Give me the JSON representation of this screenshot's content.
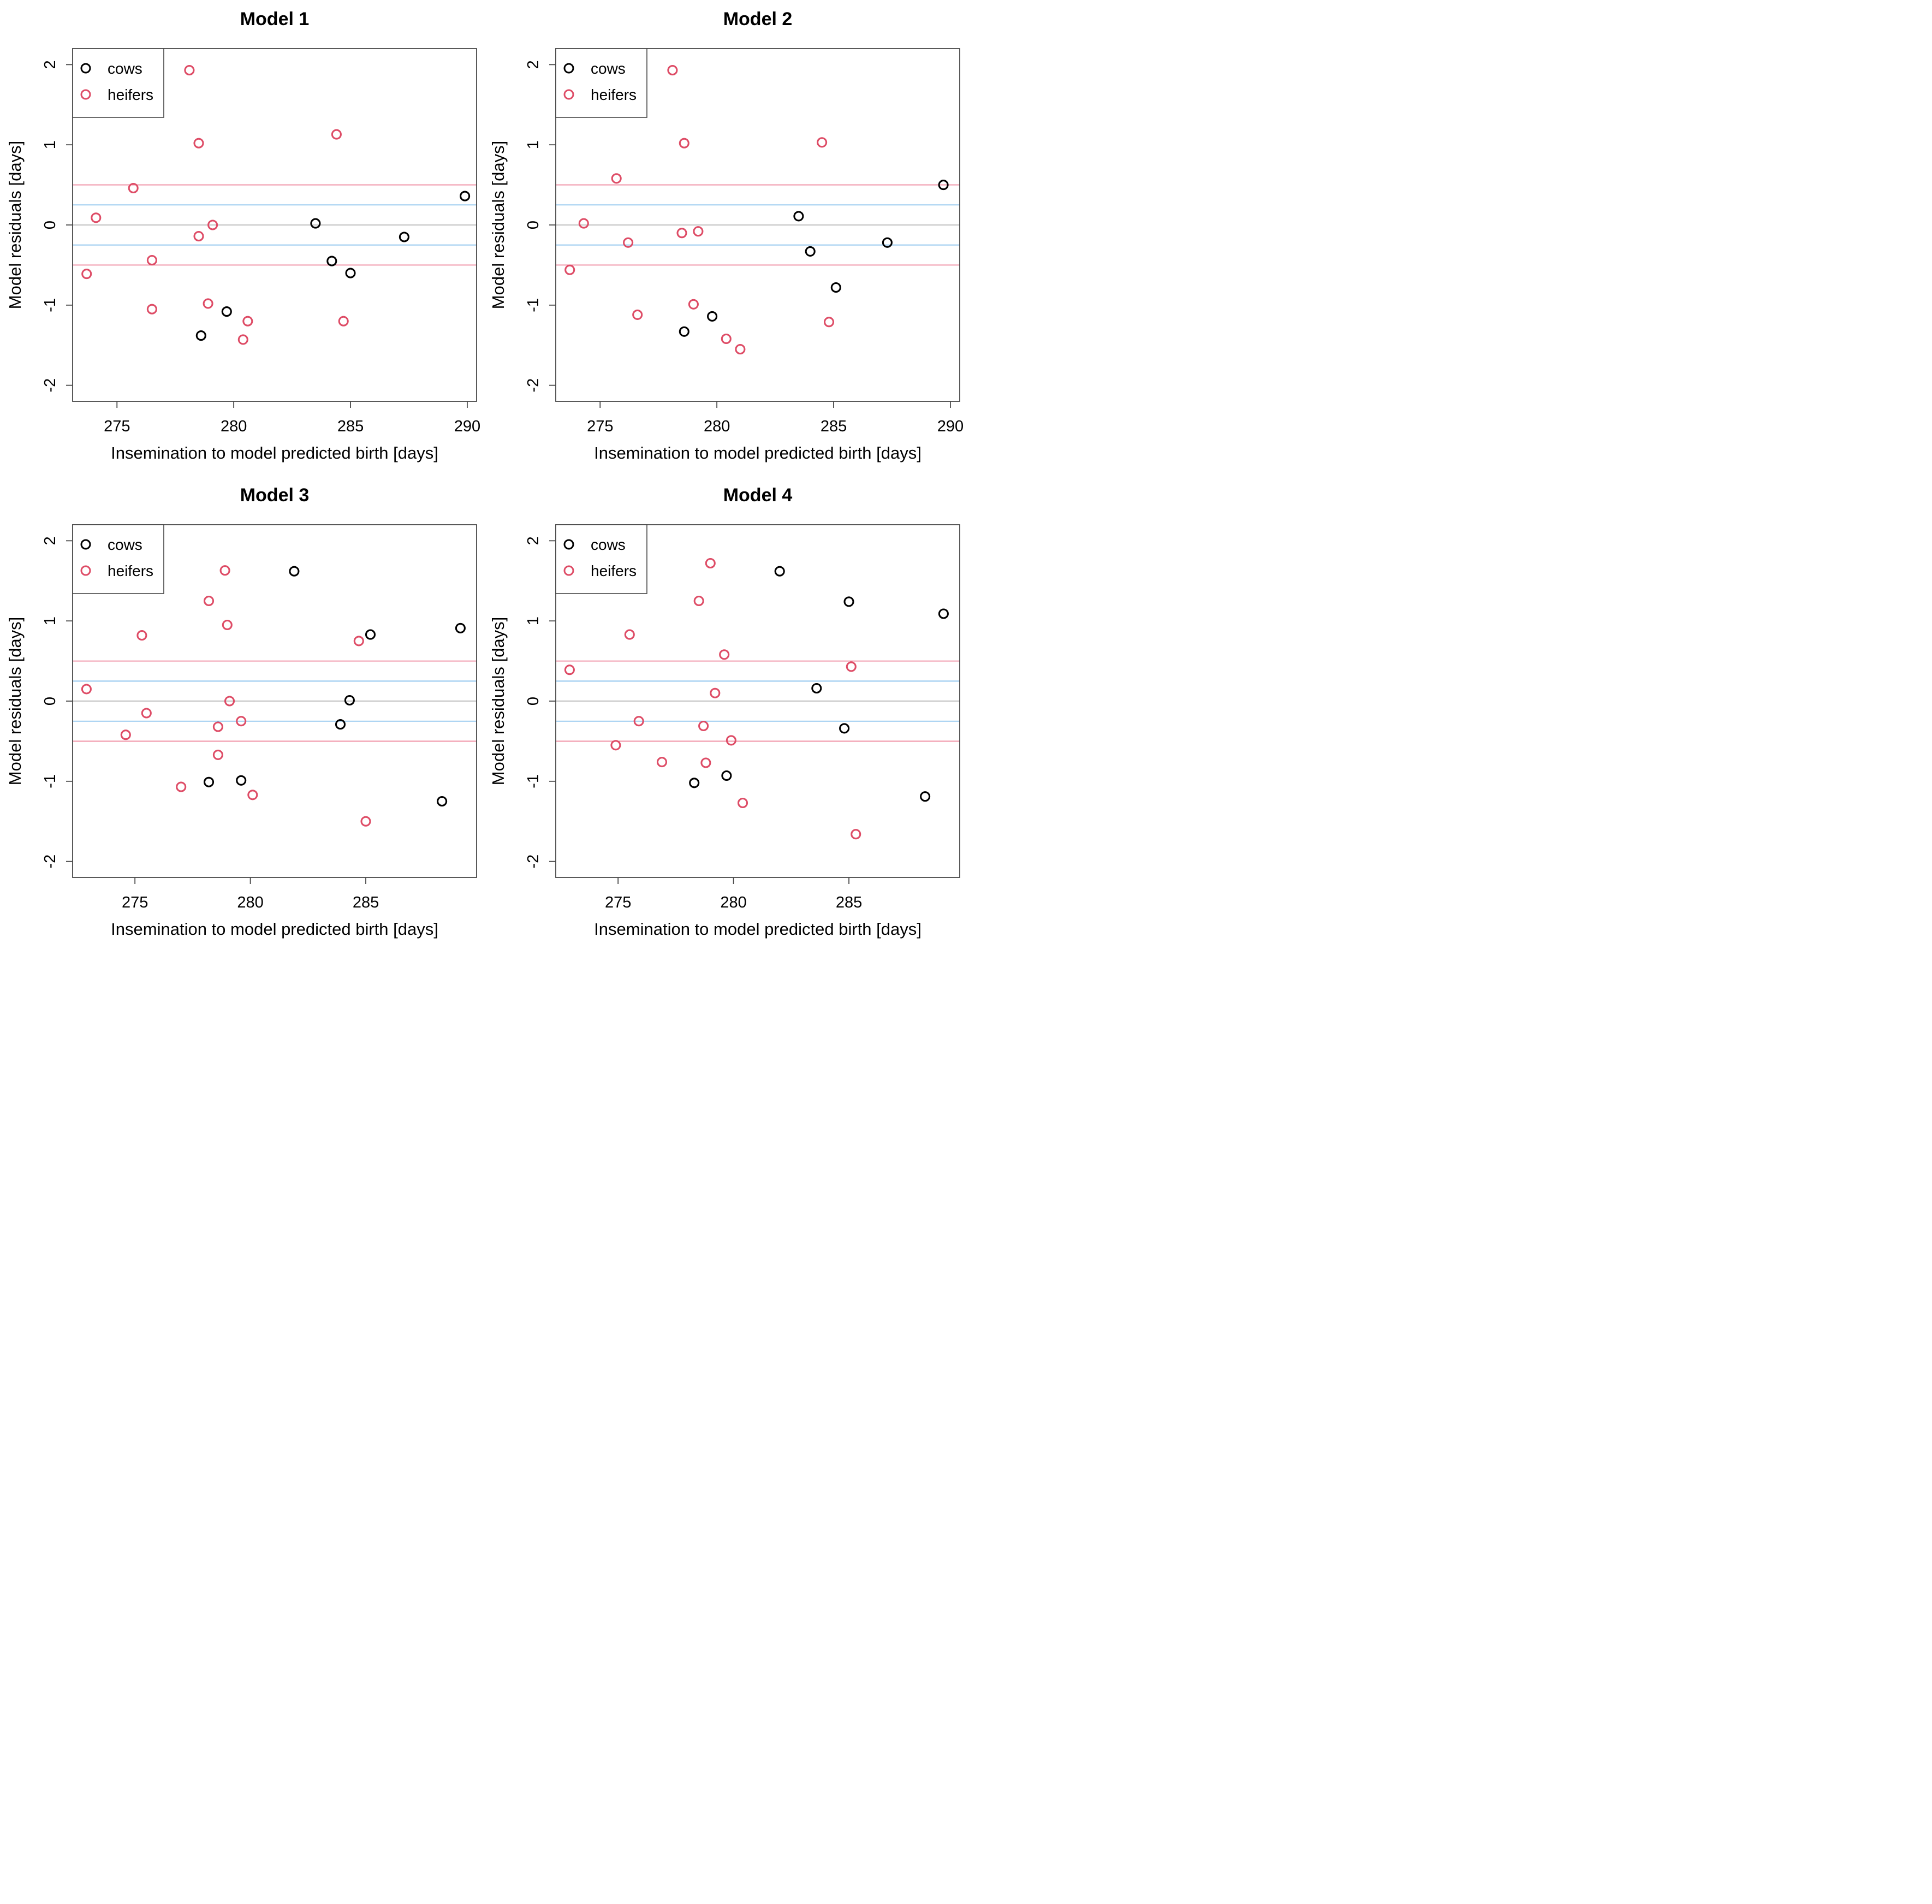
{
  "figure": {
    "layout": "2x2 grid of R-style scatter panels",
    "xlabel": "Insemination to model predicted birth [days]",
    "ylabel": "Model residuals [days]",
    "legend": {
      "position": "top-left",
      "items": [
        {
          "label": "cows",
          "color": "#000000",
          "marker": "open-circle"
        },
        {
          "label": "heifers",
          "color": "#DE4C66",
          "marker": "open-circle"
        }
      ]
    },
    "colors": {
      "cow_marker": "#000000",
      "heifer_marker": "#DE4C66",
      "zero_line": "#CBCBCB",
      "inner_band_line": "#72B5EA",
      "outer_band_line": "#EE8298",
      "axis": "#474747",
      "text": "#000000",
      "background": "#ffffff"
    }
  },
  "chart_data": [
    {
      "type": "scatter",
      "title": "Model 1",
      "xlabel": "Insemination to model predicted birth [days]",
      "ylabel": "Model residuals [days]",
      "xlim": [
        273.1,
        290.4
      ],
      "ylim": [
        -2.2,
        2.2
      ],
      "xticks": [
        275,
        280,
        285,
        290
      ],
      "yticks": [
        -2,
        -1,
        0,
        1,
        2
      ],
      "grid": false,
      "legend_position": "top-left",
      "reference_lines": [
        {
          "y": 0,
          "color": "#CBCBCB",
          "width": 2.4
        },
        {
          "y": 0.25,
          "color": "#72B5EA",
          "width": 1.7
        },
        {
          "y": -0.25,
          "color": "#72B5EA",
          "width": 1.7
        },
        {
          "y": 0.5,
          "color": "#EE8298",
          "width": 1.7
        },
        {
          "y": -0.5,
          "color": "#EE8298",
          "width": 1.7
        }
      ],
      "series": [
        {
          "name": "cows",
          "color": "#000000",
          "points": [
            [
              283.5,
              0.02
            ],
            [
              289.9,
              0.36
            ],
            [
              287.3,
              -0.15
            ],
            [
              284.2,
              -0.45
            ],
            [
              285.0,
              -0.6
            ],
            [
              279.7,
              -1.08
            ],
            [
              278.6,
              -1.38
            ]
          ]
        },
        {
          "name": "heifers",
          "color": "#DE4C66",
          "points": [
            [
              278.1,
              1.93
            ],
            [
              284.4,
              1.13
            ],
            [
              278.5,
              1.02
            ],
            [
              275.7,
              0.46
            ],
            [
              274.1,
              0.09
            ],
            [
              279.1,
              0.0
            ],
            [
              278.5,
              -0.14
            ],
            [
              276.5,
              -0.44
            ],
            [
              273.7,
              -0.61
            ],
            [
              278.9,
              -0.98
            ],
            [
              276.5,
              -1.05
            ],
            [
              280.6,
              -1.2
            ],
            [
              284.7,
              -1.2
            ],
            [
              280.4,
              -1.43
            ]
          ]
        }
      ]
    },
    {
      "type": "scatter",
      "title": "Model 2",
      "xlabel": "Insemination to model predicted birth [days]",
      "ylabel": "Model residuals [days]",
      "xlim": [
        273.1,
        290.4
      ],
      "ylim": [
        -2.2,
        2.2
      ],
      "xticks": [
        275,
        280,
        285,
        290
      ],
      "yticks": [
        -2,
        -1,
        0,
        1,
        2
      ],
      "grid": false,
      "legend_position": "top-left",
      "reference_lines": [
        {
          "y": 0,
          "color": "#CBCBCB",
          "width": 2.4
        },
        {
          "y": 0.25,
          "color": "#72B5EA",
          "width": 1.7
        },
        {
          "y": -0.25,
          "color": "#72B5EA",
          "width": 1.7
        },
        {
          "y": 0.5,
          "color": "#EE8298",
          "width": 1.7
        },
        {
          "y": -0.5,
          "color": "#EE8298",
          "width": 1.7
        }
      ],
      "series": [
        {
          "name": "cows",
          "color": "#000000",
          "points": [
            [
              289.7,
              0.5
            ],
            [
              283.5,
              0.11
            ],
            [
              287.3,
              -0.22
            ],
            [
              284.0,
              -0.33
            ],
            [
              285.1,
              -0.78
            ],
            [
              279.8,
              -1.14
            ],
            [
              278.6,
              -1.33
            ]
          ]
        },
        {
          "name": "heifers",
          "color": "#DE4C66",
          "points": [
            [
              278.1,
              1.93
            ],
            [
              284.5,
              1.03
            ],
            [
              278.6,
              1.02
            ],
            [
              275.7,
              0.58
            ],
            [
              274.3,
              0.02
            ],
            [
              279.2,
              -0.08
            ],
            [
              278.5,
              -0.1
            ],
            [
              276.2,
              -0.22
            ],
            [
              273.7,
              -0.56
            ],
            [
              279.0,
              -0.99
            ],
            [
              276.6,
              -1.12
            ],
            [
              284.8,
              -1.21
            ],
            [
              280.4,
              -1.42
            ],
            [
              281.0,
              -1.55
            ]
          ]
        }
      ]
    },
    {
      "type": "scatter",
      "title": "Model 3",
      "xlabel": "Insemination to model predicted birth [days]",
      "ylabel": "Model residuals [days]",
      "xlim": [
        272.3,
        289.8
      ],
      "ylim": [
        -2.2,
        2.2
      ],
      "xticks": [
        275,
        280,
        285
      ],
      "yticks": [
        -2,
        -1,
        0,
        1,
        2
      ],
      "grid": false,
      "legend_position": "top-left",
      "reference_lines": [
        {
          "y": 0,
          "color": "#CBCBCB",
          "width": 2.4
        },
        {
          "y": 0.25,
          "color": "#72B5EA",
          "width": 1.7
        },
        {
          "y": -0.25,
          "color": "#72B5EA",
          "width": 1.7
        },
        {
          "y": 0.5,
          "color": "#EE8298",
          "width": 1.7
        },
        {
          "y": -0.5,
          "color": "#EE8298",
          "width": 1.7
        }
      ],
      "series": [
        {
          "name": "cows",
          "color": "#000000",
          "points": [
            [
              281.9,
              1.62
            ],
            [
              285.2,
              0.83
            ],
            [
              289.1,
              0.91
            ],
            [
              284.3,
              0.01
            ],
            [
              283.9,
              -0.29
            ],
            [
              278.2,
              -1.01
            ],
            [
              279.6,
              -0.99
            ],
            [
              288.3,
              -1.25
            ]
          ]
        },
        {
          "name": "heifers",
          "color": "#DE4C66",
          "points": [
            [
              278.9,
              1.63
            ],
            [
              278.2,
              1.25
            ],
            [
              279.0,
              0.95
            ],
            [
              275.3,
              0.82
            ],
            [
              284.7,
              0.75
            ],
            [
              272.9,
              0.15
            ],
            [
              279.1,
              0.0
            ],
            [
              275.5,
              -0.15
            ],
            [
              279.6,
              -0.25
            ],
            [
              278.6,
              -0.32
            ],
            [
              274.6,
              -0.42
            ],
            [
              278.6,
              -0.67
            ],
            [
              277.0,
              -1.07
            ],
            [
              280.1,
              -1.17
            ],
            [
              285.0,
              -1.5
            ]
          ]
        }
      ]
    },
    {
      "type": "scatter",
      "title": "Model 4",
      "xlabel": "Insemination to model predicted birth [days]",
      "ylabel": "Model residuals [days]",
      "xlim": [
        272.3,
        289.8
      ],
      "ylim": [
        -2.2,
        2.2
      ],
      "xticks": [
        275,
        280,
        285
      ],
      "yticks": [
        -2,
        -1,
        0,
        1,
        2
      ],
      "grid": false,
      "legend_position": "top-left",
      "reference_lines": [
        {
          "y": 0,
          "color": "#CBCBCB",
          "width": 2.4
        },
        {
          "y": 0.25,
          "color": "#72B5EA",
          "width": 1.7
        },
        {
          "y": -0.25,
          "color": "#72B5EA",
          "width": 1.7
        },
        {
          "y": 0.5,
          "color": "#EE8298",
          "width": 1.7
        },
        {
          "y": -0.5,
          "color": "#EE8298",
          "width": 1.7
        }
      ],
      "series": [
        {
          "name": "cows",
          "color": "#000000",
          "points": [
            [
              282.0,
              1.62
            ],
            [
              285.0,
              1.24
            ],
            [
              289.1,
              1.09
            ],
            [
              283.6,
              0.16
            ],
            [
              284.8,
              -0.34
            ],
            [
              279.7,
              -0.93
            ],
            [
              278.3,
              -1.02
            ],
            [
              288.3,
              -1.19
            ]
          ]
        },
        {
          "name": "heifers",
          "color": "#DE4C66",
          "points": [
            [
              279.0,
              1.72
            ],
            [
              278.5,
              1.25
            ],
            [
              275.5,
              0.83
            ],
            [
              279.6,
              0.58
            ],
            [
              285.1,
              0.43
            ],
            [
              272.9,
              0.39
            ],
            [
              279.2,
              0.1
            ],
            [
              275.9,
              -0.25
            ],
            [
              278.7,
              -0.31
            ],
            [
              279.9,
              -0.49
            ],
            [
              274.9,
              -0.55
            ],
            [
              276.9,
              -0.76
            ],
            [
              278.8,
              -0.77
            ],
            [
              280.4,
              -1.27
            ],
            [
              285.3,
              -1.66
            ]
          ]
        }
      ]
    }
  ]
}
